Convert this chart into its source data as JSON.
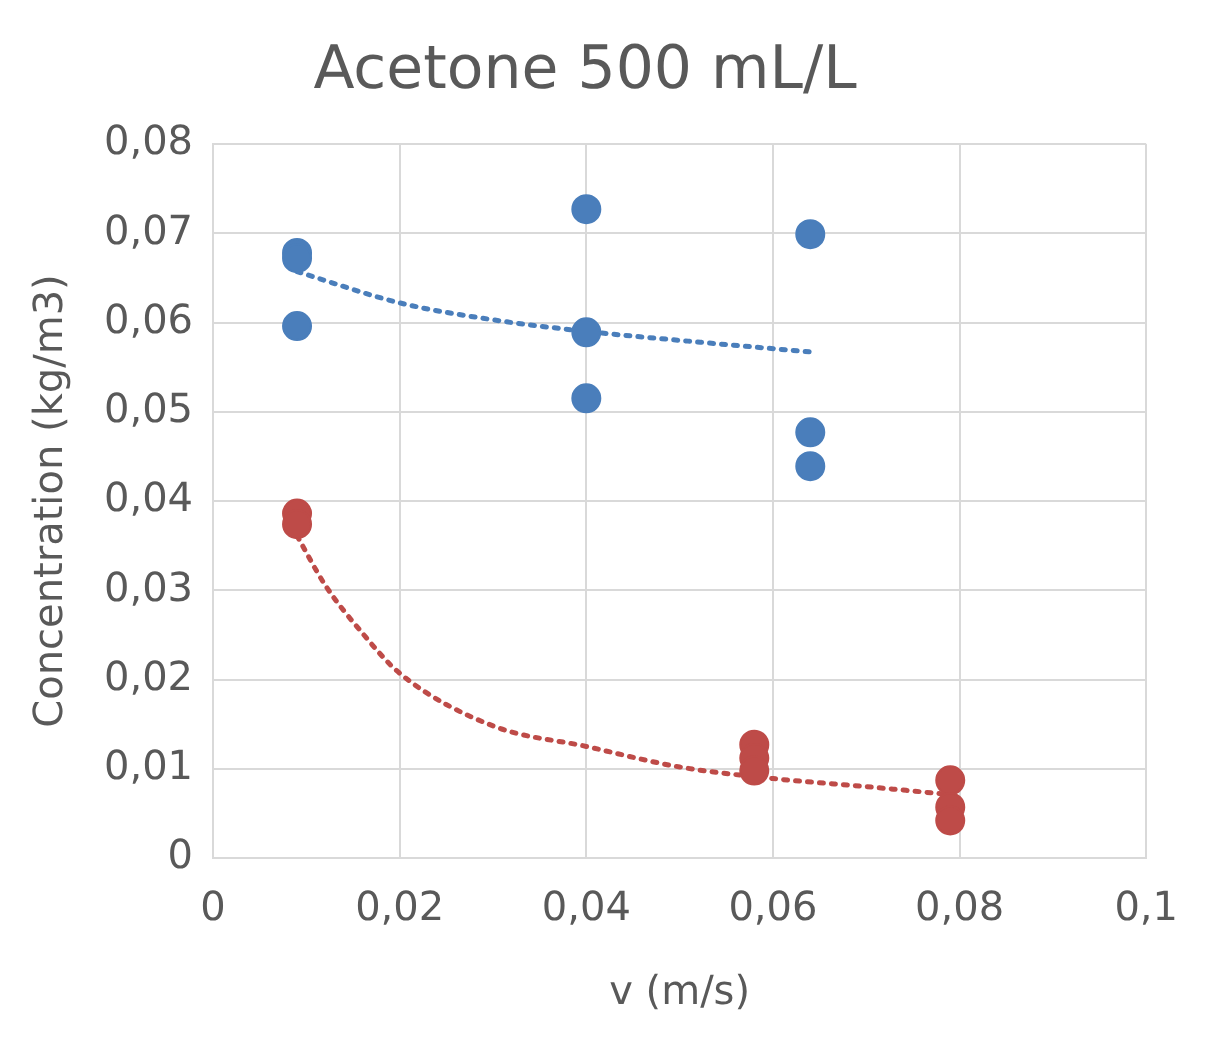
{
  "chart_data": {
    "type": "scatter",
    "title": "Acetone 500 mL/L",
    "xlabel": "v (m/s)",
    "ylabel": "Concentration (kg/m3)",
    "xlim": [
      0,
      0.1
    ],
    "xticks": [
      {
        "value": 0,
        "label": "0"
      },
      {
        "value": 0.02,
        "label": "0,02"
      },
      {
        "value": 0.04,
        "label": "0,04"
      },
      {
        "value": 0.06,
        "label": "0,06"
      },
      {
        "value": 0.08,
        "label": "0,08"
      },
      {
        "value": 0.1,
        "label": "0,1"
      }
    ],
    "ylim": [
      0,
      0.08
    ],
    "yticks": [
      {
        "value": 0,
        "label": "0"
      },
      {
        "value": 0.01,
        "label": "0,01"
      },
      {
        "value": 0.02,
        "label": "0,02"
      },
      {
        "value": 0.03,
        "label": "0,03"
      },
      {
        "value": 0.04,
        "label": "0,04"
      },
      {
        "value": 0.05,
        "label": "0,05"
      },
      {
        "value": 0.06,
        "label": "0,06"
      },
      {
        "value": 0.07,
        "label": "0,07"
      },
      {
        "value": 0.08,
        "label": "0,08"
      }
    ],
    "grid": true,
    "legend": false,
    "marker": "circle",
    "series": [
      {
        "color": "#4a7ebb",
        "x": [
          0.009,
          0.009,
          0.009,
          0.04,
          0.04,
          0.04,
          0.064,
          0.064,
          0.064
        ],
        "values": [
          0.0678,
          0.0672,
          0.0596,
          0.0727,
          0.0589,
          0.0515,
          0.0699,
          0.0477,
          0.0439
        ]
      },
      {
        "color": "#be4b48",
        "x": [
          0.009,
          0.009,
          0.058,
          0.058,
          0.058,
          0.079,
          0.079,
          0.079
        ],
        "values": [
          0.0386,
          0.0374,
          0.0127,
          0.0112,
          0.0098,
          0.0087,
          0.0057,
          0.0042
        ]
      },
      {
        "type": "line",
        "color": "#4a7ebb",
        "line_style": "dotted",
        "marker": "none",
        "x": [
          0.009,
          0.02,
          0.03,
          0.04,
          0.05,
          0.064
        ],
        "values": [
          0.0657,
          0.0622,
          0.0603,
          0.059,
          0.058,
          0.0567
        ]
      },
      {
        "type": "line",
        "color": "#be4b48",
        "line_style": "dotted",
        "marker": "none",
        "x": [
          0.009,
          0.012,
          0.016,
          0.02,
          0.03,
          0.04,
          0.05,
          0.06,
          0.07,
          0.079
        ],
        "values": [
          0.0361,
          0.0306,
          0.0252,
          0.0207,
          0.0148,
          0.0125,
          0.0102,
          0.0089,
          0.008,
          0.0071
        ]
      }
    ]
  }
}
